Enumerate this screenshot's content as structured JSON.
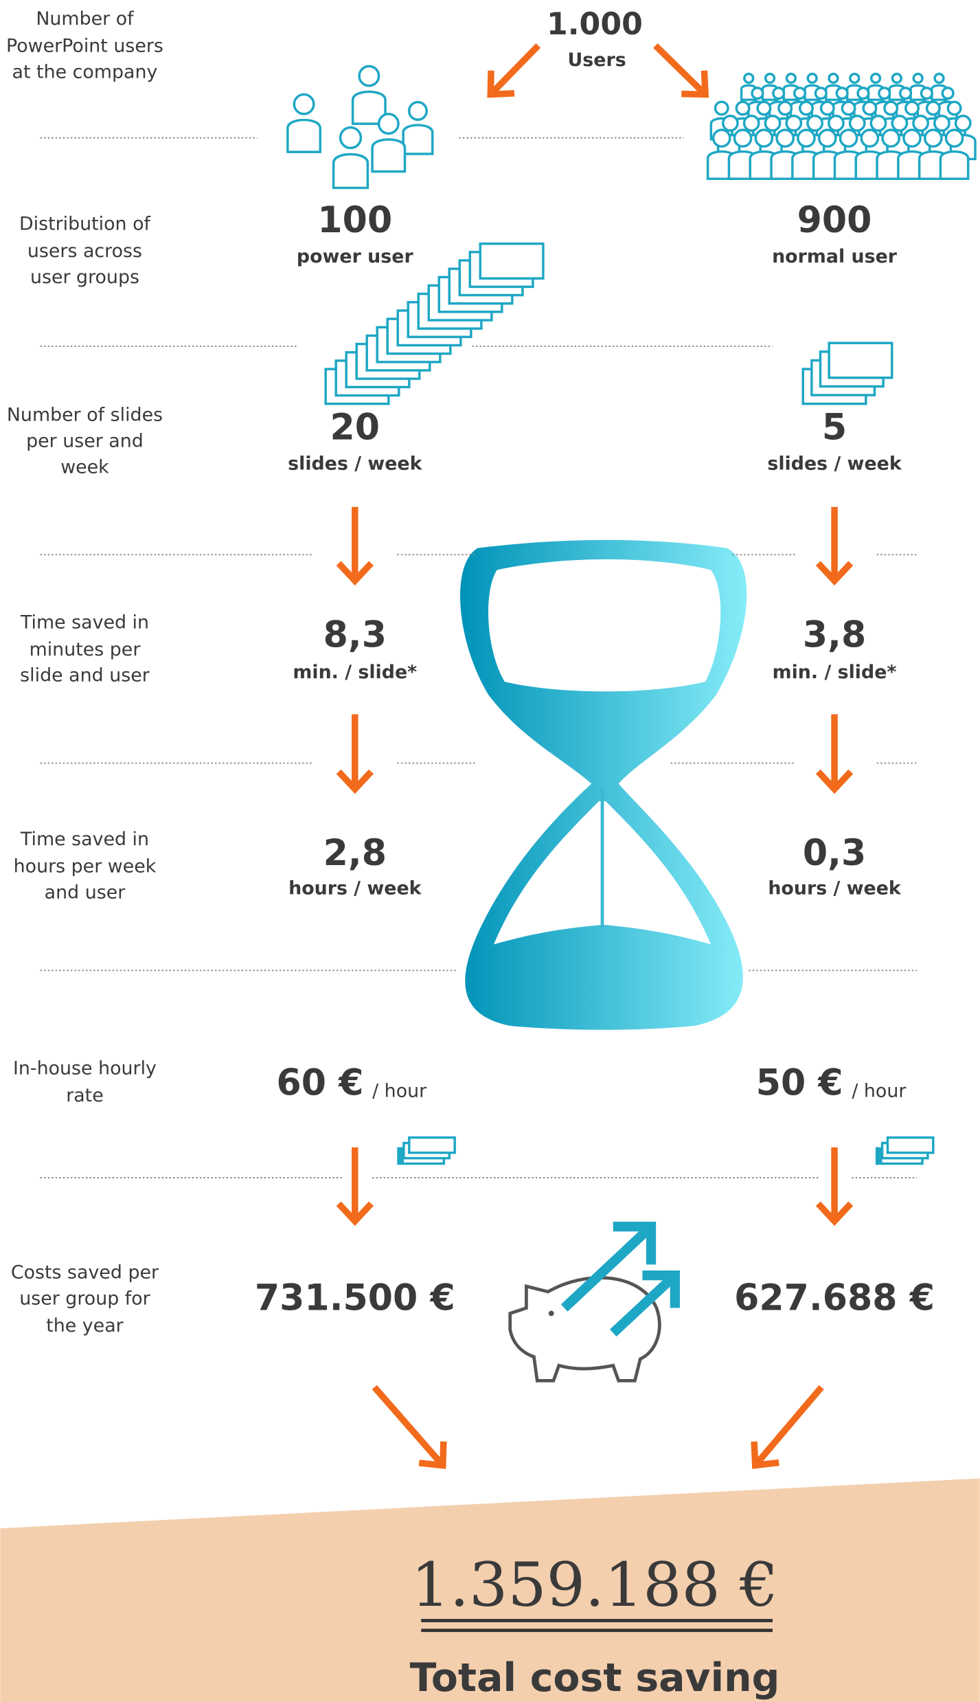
{
  "header": {
    "total_users": "1.000",
    "total_users_label": "Users"
  },
  "row_labels": [
    [
      "Number of",
      "PowerPoint users",
      "at the company"
    ],
    [
      "Distribution of",
      "users across",
      "user groups"
    ],
    [
      "Number of slides",
      "per user and",
      "week"
    ],
    [
      "Time saved in",
      "minutes per",
      "slide and user"
    ],
    [
      "Time saved in",
      "hours per week",
      "and user"
    ],
    [
      "In-house hourly",
      "rate"
    ],
    [
      "Costs saved per",
      "user group for",
      "the year"
    ]
  ],
  "groups": [
    {
      "users": "100",
      "users_unit": "power user",
      "slides": "20",
      "slides_unit": "slides / week",
      "minutes": "8,3",
      "minutes_unit": "min. / slide*",
      "hours": "2,8",
      "hours_unit": "hours / week",
      "rate": "60 €",
      "rate_unit": "/ hour",
      "costs": "731.500 €"
    },
    {
      "users": "900",
      "users_unit": "normal user",
      "slides": "5",
      "slides_unit": "slides / week",
      "minutes": "3,8",
      "minutes_unit": "min. / slide*",
      "hours": "0,3",
      "hours_unit": "hours / week",
      "rate": "50 €",
      "rate_unit": "/ hour",
      "costs": "627.688 €"
    }
  ],
  "total": {
    "value": "1.359.188 €",
    "label": "Total cost saving"
  }
}
